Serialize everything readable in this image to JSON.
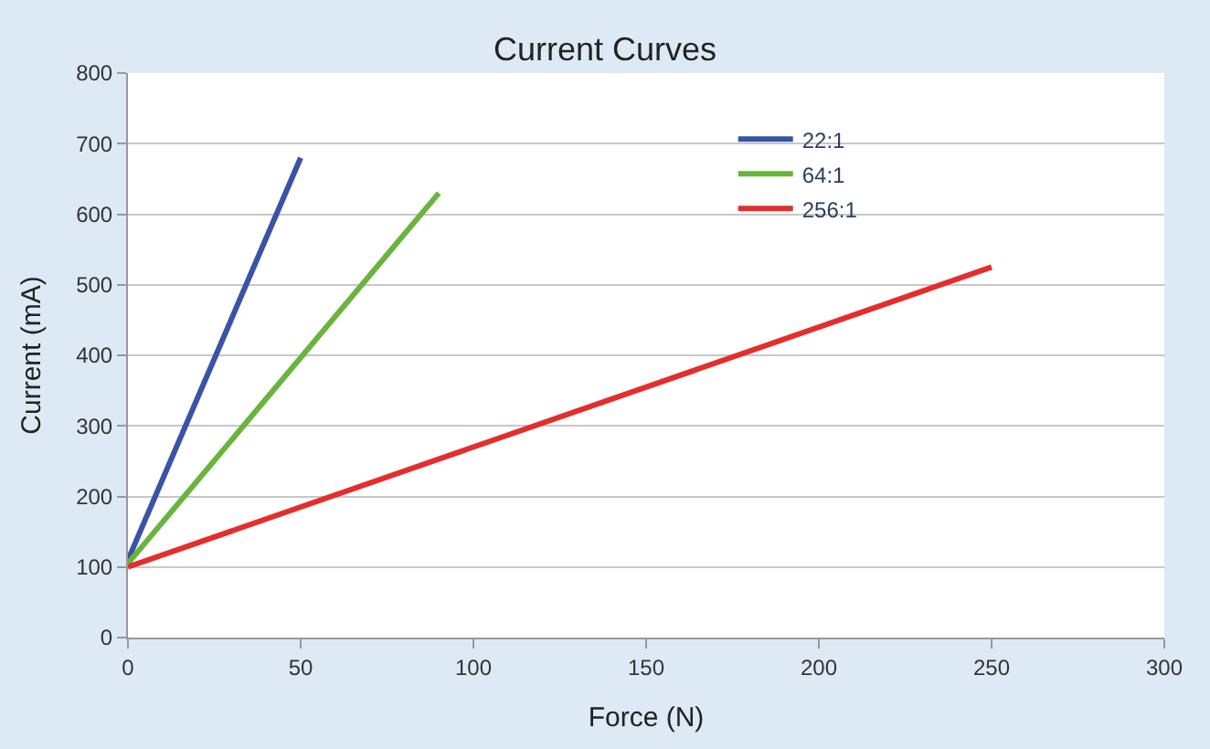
{
  "chart_data": {
    "type": "line",
    "title": "Current Curves",
    "xlabel": "Force (N)",
    "ylabel": "Current (mA)",
    "series": [
      {
        "name": "22:1",
        "color": "#3a53a4",
        "x": [
          0,
          50
        ],
        "values": [
          110,
          680
        ]
      },
      {
        "name": "64:1",
        "color": "#6ab43e",
        "x": [
          0,
          90
        ],
        "values": [
          105,
          630
        ]
      },
      {
        "name": "256:1",
        "color": "#e52d2d",
        "x": [
          0,
          250
        ],
        "values": [
          100,
          525
        ]
      }
    ],
    "xlim": [
      0,
      300
    ],
    "xticks": [
      0,
      50,
      100,
      150,
      200,
      250,
      300
    ],
    "ylim": [
      0,
      800
    ],
    "yticks": [
      0,
      100,
      200,
      300,
      400,
      500,
      600,
      700,
      800
    ],
    "grid": "y",
    "legend": "top right",
    "marker": "none",
    "line_style": "solid"
  }
}
